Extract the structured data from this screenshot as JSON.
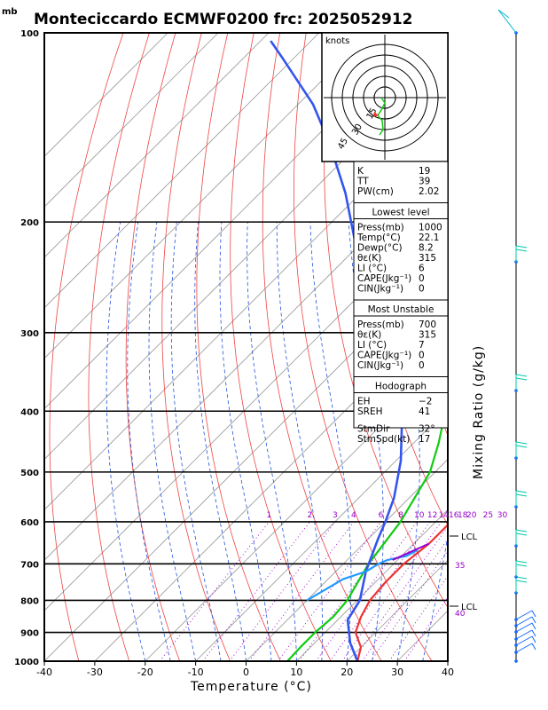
{
  "title": "Monteciccardo ECMWF0200  frc: 2025052912",
  "yunit": "mb",
  "xlabel": "Temperature (°C)",
  "right_label": "Mixing Ratio (g/kg)",
  "lcl_label": "LCL",
  "hodograph": {
    "units": "knots",
    "ring_labels": [
      "15",
      "30",
      "45"
    ]
  },
  "mixing_ratio_labels": [
    "1",
    "2",
    "3",
    "4",
    "6",
    "8",
    "10",
    "12",
    "14",
    "16",
    "18",
    "20",
    "25",
    "30"
  ],
  "side_numbers": [
    "35",
    "40"
  ],
  "indices": {
    "top": [
      {
        "k": "K",
        "v": "19"
      },
      {
        "k": "TT",
        "v": "39"
      },
      {
        "k": "PW(cm)",
        "v": "2.02"
      }
    ],
    "lowest": {
      "header": "Lowest level",
      "rows": [
        {
          "k": "Press(mb)",
          "v": "1000"
        },
        {
          "k": "Temp(°C)",
          "v": "22.1"
        },
        {
          "k": "Dewp(°C)",
          "v": "8.2"
        },
        {
          "k": "θε(K)",
          "v": "315"
        },
        {
          "k": "LI (°C)",
          "v": "6"
        },
        {
          "k": "CAPE(Jkg⁻¹)",
          "v": "0"
        },
        {
          "k": "CIN(Jkg⁻¹)",
          "v": "0"
        }
      ]
    },
    "unstable": {
      "header": "Most Unstable",
      "rows": [
        {
          "k": "Press(mb)",
          "v": "700"
        },
        {
          "k": "θε(K)",
          "v": "315"
        },
        {
          "k": "LI (°C)",
          "v": "7"
        },
        {
          "k": "CAPE(Jkg⁻¹)",
          "v": "0"
        },
        {
          "k": "CIN(Jkg⁻¹)",
          "v": "0"
        }
      ]
    },
    "hodo": {
      "header": "Hodograph",
      "rows": [
        {
          "k": "EH",
          "v": "−2"
        },
        {
          "k": "SREH",
          "v": "41"
        },
        {
          "k": "StmDir",
          "v": "32°"
        },
        {
          "k": "StmSpd(kt)",
          "v": "17"
        }
      ]
    }
  },
  "chart_data": {
    "type": "line",
    "title": "Monteciccardo ECMWF0200  frc: 2025052912",
    "xlabel": "Temperature (°C)",
    "ylabel": "mb",
    "x_ticks": [
      -40,
      -30,
      -20,
      -10,
      0,
      10,
      20,
      30,
      40
    ],
    "y_ticks": [
      100,
      200,
      300,
      400,
      500,
      600,
      700,
      800,
      900,
      1000
    ],
    "y_scale": "log",
    "ylim": [
      1000,
      100
    ],
    "xlim": [
      -40,
      40
    ],
    "colors": {
      "temperature": "#ee3333",
      "dewpoint": "#11cc11",
      "parcel": "#3355ee",
      "mixing": "#9900cc",
      "barbs": "#00b8c8"
    },
    "series": [
      {
        "points": [
          [
            22.1,
            1000
          ],
          [
            20,
            950
          ],
          [
            16,
            900
          ],
          [
            14,
            850
          ],
          [
            12.5,
            800
          ],
          [
            12,
            750
          ],
          [
            12,
            700
          ],
          [
            13,
            650
          ],
          [
            13,
            600
          ],
          [
            10,
            550
          ],
          [
            7,
            500
          ],
          [
            1,
            450
          ],
          [
            -4,
            400
          ],
          [
            -10,
            350
          ],
          [
            -16,
            300
          ],
          [
            -22,
            260
          ],
          [
            -20,
            250
          ],
          [
            -16,
            230
          ],
          [
            -10,
            200
          ],
          [
            -3,
            170
          ],
          [
            5,
            140
          ],
          [
            12,
            115
          ],
          [
            16,
            100
          ]
        ]
      },
      {
        "points": [
          [
            8.2,
            1000
          ],
          [
            8,
            950
          ],
          [
            8,
            900
          ],
          [
            8.5,
            850
          ],
          [
            8,
            800
          ],
          [
            5,
            700
          ],
          [
            3,
            600
          ],
          [
            -1,
            500
          ],
          [
            -5,
            450
          ],
          [
            -10,
            400
          ],
          [
            -16,
            350
          ],
          [
            -25,
            300
          ],
          [
            -34,
            260
          ],
          [
            -39,
            240
          ],
          [
            -44,
            200
          ],
          [
            -52,
            150
          ],
          [
            -60,
            120
          ],
          [
            -66,
            100
          ]
        ]
      },
      {
        "points": [
          [
            22.1,
            1000
          ],
          [
            17,
            935
          ],
          [
            12,
            860
          ],
          [
            10.5,
            800
          ],
          [
            6,
            720
          ],
          [
            2,
            640
          ],
          [
            0,
            600
          ],
          [
            -3,
            550
          ],
          [
            -9,
            480
          ],
          [
            -16,
            420
          ],
          [
            -23,
            370
          ],
          [
            -30,
            330
          ],
          [
            -37,
            300
          ],
          [
            -48,
            260
          ],
          [
            -60,
            220
          ],
          [
            -73,
            180
          ],
          [
            -86,
            150
          ],
          [
            -97,
            130
          ],
          [
            -112,
            110
          ],
          [
            -118,
            103
          ]
        ]
      },
      {
        "points": [
          [
            12,
            665
          ],
          [
            11,
            680
          ],
          [
            8,
            690
          ],
          [
            7,
            700
          ],
          [
            6,
            720
          ],
          [
            3,
            740
          ],
          [
            2,
            760
          ],
          [
            1,
            780
          ],
          [
            0,
            800
          ]
        ]
      }
    ]
  }
}
